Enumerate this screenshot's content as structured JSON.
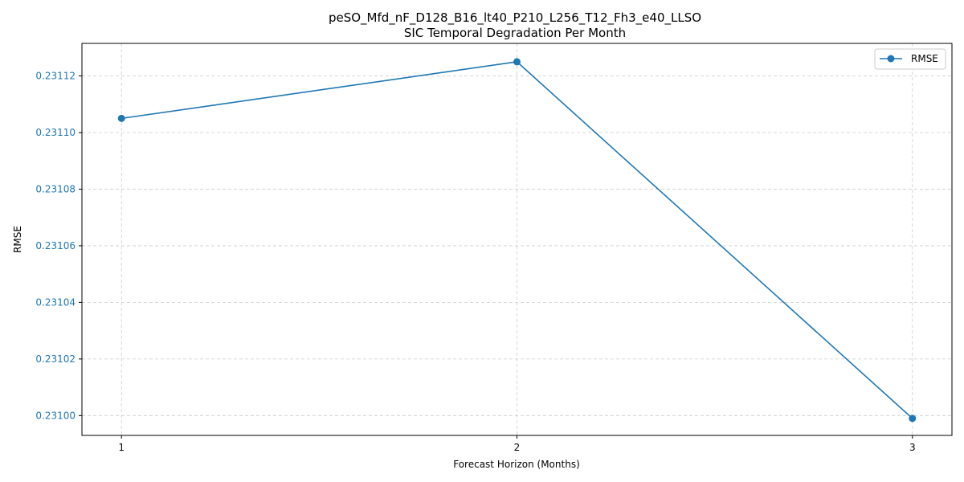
{
  "chart_data": {
    "type": "line",
    "title": "peSO_Mfd_nF_D128_B16_lt40_P210_L256_T12_Fh3_e40_LLSO",
    "subtitle": "SIC Temporal Degradation Per Month",
    "xlabel": "Forecast Horizon (Months)",
    "ylabel": "RMSE",
    "x": [
      1,
      2,
      3
    ],
    "x_ticks": [
      "1",
      "2",
      "3"
    ],
    "y_ticks": [
      "0.23100",
      "0.23102",
      "0.23104",
      "0.23106",
      "0.23108",
      "0.23110",
      "0.23112"
    ],
    "y_tick_values": [
      0.231,
      0.23102,
      0.23104,
      0.23106,
      0.23108,
      0.2311,
      0.23112
    ],
    "xlim": [
      0.9,
      3.1
    ],
    "ylim": [
      0.230993,
      0.2311315
    ],
    "grid": true,
    "legend_position": "top-right",
    "series": [
      {
        "name": "RMSE",
        "values": [
          0.231105,
          0.231125,
          0.230999
        ],
        "color": "#1f77b4",
        "marker": "circle"
      }
    ],
    "colors": {
      "series": "#1f77b4",
      "y_tick_text": "#1f77b4",
      "grid": "#cccccc"
    }
  }
}
